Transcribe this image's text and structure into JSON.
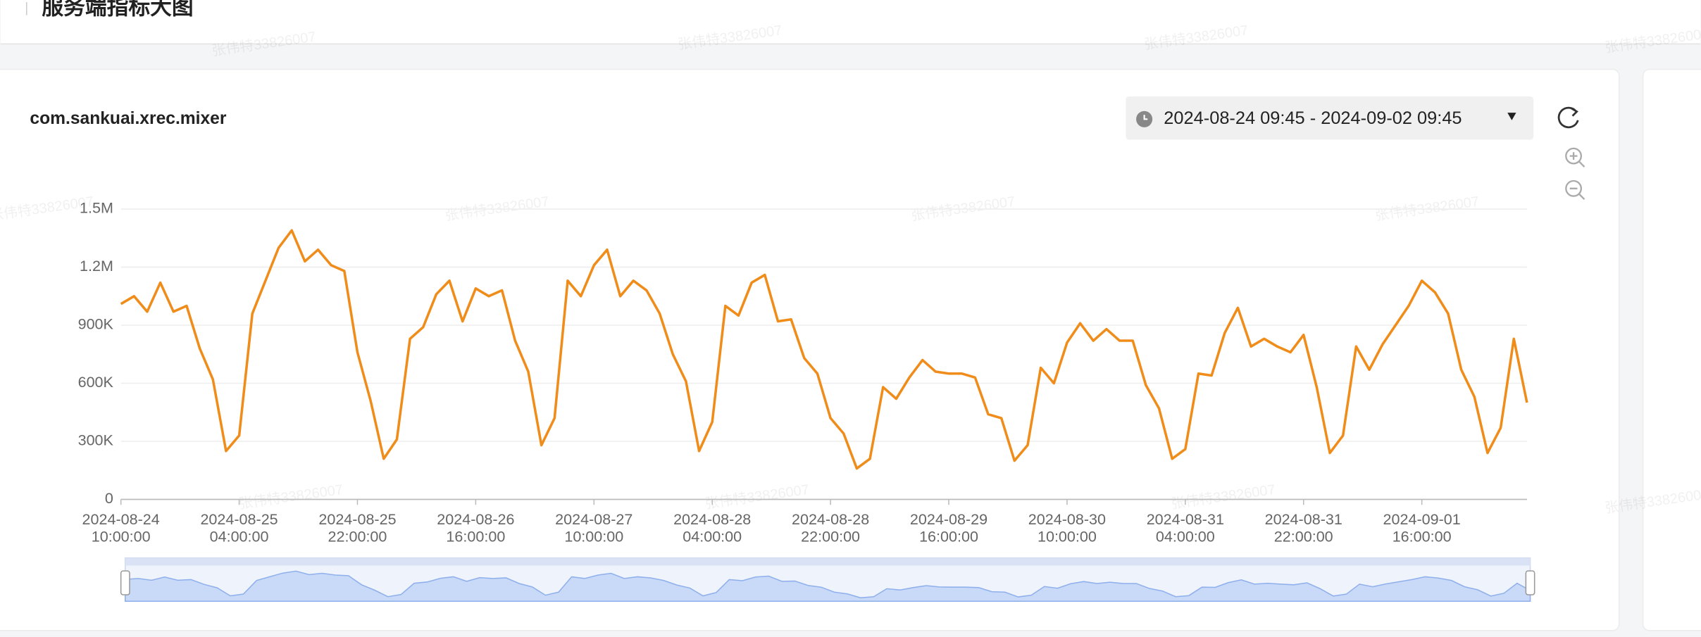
{
  "header": {
    "title": "服务端指标大图"
  },
  "watermark": "张伟特33826007",
  "card": {
    "title": "com.sankuai.xrec.mixer",
    "time_range": "2024-08-24 09:45 - 2024-09-02 09:45"
  },
  "chart_data": {
    "type": "line",
    "color": "#ef8c1a",
    "grid": true,
    "x": [
      "2024-08-24 10:00:00",
      "2024-08-24 12:00:00",
      "2024-08-24 14:00:00",
      "2024-08-24 16:00:00",
      "2024-08-24 18:00:00",
      "2024-08-24 20:00:00",
      "2024-08-24 22:00:00",
      "2024-08-25 00:00:00",
      "2024-08-25 02:00:00",
      "2024-08-25 04:00:00",
      "2024-08-25 06:00:00",
      "2024-08-25 08:00:00",
      "2024-08-25 10:00:00",
      "2024-08-25 12:00:00",
      "2024-08-25 14:00:00",
      "2024-08-25 16:00:00",
      "2024-08-25 18:00:00",
      "2024-08-25 20:00:00",
      "2024-08-25 22:00:00",
      "2024-08-26 00:00:00",
      "2024-08-26 02:00:00",
      "2024-08-26 04:00:00",
      "2024-08-26 06:00:00",
      "2024-08-26 08:00:00",
      "2024-08-26 10:00:00",
      "2024-08-26 12:00:00",
      "2024-08-26 14:00:00",
      "2024-08-26 16:00:00",
      "2024-08-26 18:00:00",
      "2024-08-26 20:00:00",
      "2024-08-26 22:00:00",
      "2024-08-27 00:00:00",
      "2024-08-27 02:00:00",
      "2024-08-27 04:00:00",
      "2024-08-27 06:00:00",
      "2024-08-27 08:00:00",
      "2024-08-27 10:00:00",
      "2024-08-27 12:00:00",
      "2024-08-27 14:00:00",
      "2024-08-27 16:00:00",
      "2024-08-27 18:00:00",
      "2024-08-27 20:00:00",
      "2024-08-27 22:00:00",
      "2024-08-28 00:00:00",
      "2024-08-28 02:00:00",
      "2024-08-28 04:00:00",
      "2024-08-28 06:00:00",
      "2024-08-28 08:00:00",
      "2024-08-28 10:00:00",
      "2024-08-28 12:00:00",
      "2024-08-28 14:00:00",
      "2024-08-28 16:00:00",
      "2024-08-28 18:00:00",
      "2024-08-28 20:00:00",
      "2024-08-28 22:00:00",
      "2024-08-29 00:00:00",
      "2024-08-29 02:00:00",
      "2024-08-29 04:00:00",
      "2024-08-29 06:00:00",
      "2024-08-29 08:00:00",
      "2024-08-29 10:00:00",
      "2024-08-29 12:00:00",
      "2024-08-29 14:00:00",
      "2024-08-29 16:00:00",
      "2024-08-29 18:00:00",
      "2024-08-29 20:00:00",
      "2024-08-29 22:00:00",
      "2024-08-30 00:00:00",
      "2024-08-30 02:00:00",
      "2024-08-30 04:00:00",
      "2024-08-30 06:00:00",
      "2024-08-30 08:00:00",
      "2024-08-30 10:00:00",
      "2024-08-30 12:00:00",
      "2024-08-30 14:00:00",
      "2024-08-30 16:00:00",
      "2024-08-30 18:00:00",
      "2024-08-30 20:00:00",
      "2024-08-30 22:00:00",
      "2024-08-31 00:00:00",
      "2024-08-31 02:00:00",
      "2024-08-31 04:00:00",
      "2024-08-31 06:00:00",
      "2024-08-31 08:00:00",
      "2024-08-31 10:00:00",
      "2024-08-31 12:00:00",
      "2024-08-31 14:00:00",
      "2024-08-31 16:00:00",
      "2024-08-31 18:00:00",
      "2024-08-31 20:00:00",
      "2024-08-31 22:00:00",
      "2024-09-01 00:00:00",
      "2024-09-01 02:00:00",
      "2024-09-01 04:00:00",
      "2024-09-01 06:00:00",
      "2024-09-01 08:00:00",
      "2024-09-01 10:00:00",
      "2024-09-01 12:00:00",
      "2024-09-01 14:00:00",
      "2024-09-01 16:00:00",
      "2024-09-01 18:00:00",
      "2024-09-01 20:00:00",
      "2024-09-01 22:00:00",
      "2024-09-02 00:00:00",
      "2024-09-02 02:00:00",
      "2024-09-02 04:00:00",
      "2024-09-02 06:00:00",
      "2024-09-02 08:00:00"
    ],
    "values": [
      1010000,
      1050000,
      970000,
      1120000,
      970000,
      1000000,
      780000,
      620000,
      250000,
      330000,
      960000,
      1130000,
      1300000,
      1390000,
      1230000,
      1290000,
      1210000,
      1180000,
      760000,
      510000,
      210000,
      310000,
      830000,
      890000,
      1060000,
      1130000,
      920000,
      1090000,
      1050000,
      1080000,
      820000,
      660000,
      280000,
      420000,
      1130000,
      1050000,
      1210000,
      1290000,
      1050000,
      1130000,
      1080000,
      960000,
      750000,
      610000,
      250000,
      400000,
      1000000,
      950000,
      1120000,
      1160000,
      920000,
      930000,
      730000,
      650000,
      420000,
      340000,
      160000,
      210000,
      580000,
      520000,
      630000,
      720000,
      660000,
      650000,
      650000,
      630000,
      440000,
      420000,
      200000,
      280000,
      680000,
      600000,
      810000,
      910000,
      820000,
      880000,
      820000,
      820000,
      590000,
      470000,
      210000,
      260000,
      650000,
      640000,
      860000,
      990000,
      790000,
      830000,
      790000,
      760000,
      850000,
      580000,
      240000,
      330000,
      790000,
      670000,
      800000,
      900000,
      1000000,
      1130000,
      1070000,
      960000,
      670000,
      530000,
      240000,
      370000,
      830000,
      500000
    ],
    "xlim": [
      "2024-08-24 10:00:00",
      "2024-09-02 08:00:00"
    ],
    "xticks": [
      "2024-08-24 10:00:00",
      "2024-08-25 04:00:00",
      "2024-08-25 22:00:00",
      "2024-08-26 16:00:00",
      "2024-08-27 10:00:00",
      "2024-08-28 04:00:00",
      "2024-08-28 22:00:00",
      "2024-08-29 16:00:00",
      "2024-08-30 10:00:00",
      "2024-08-31 04:00:00",
      "2024-08-31 22:00:00",
      "2024-09-01 16:00:00"
    ],
    "ylim": [
      0,
      1500000
    ],
    "yticks": [
      0,
      {
        "value": 300000,
        "label": "300K"
      },
      {
        "value": 600000,
        "label": "600K"
      },
      {
        "value": 900000,
        "label": "900K"
      },
      {
        "value": 1200000,
        "label": "1.2M"
      },
      {
        "value": 1500000,
        "label": "1.5M"
      }
    ]
  }
}
